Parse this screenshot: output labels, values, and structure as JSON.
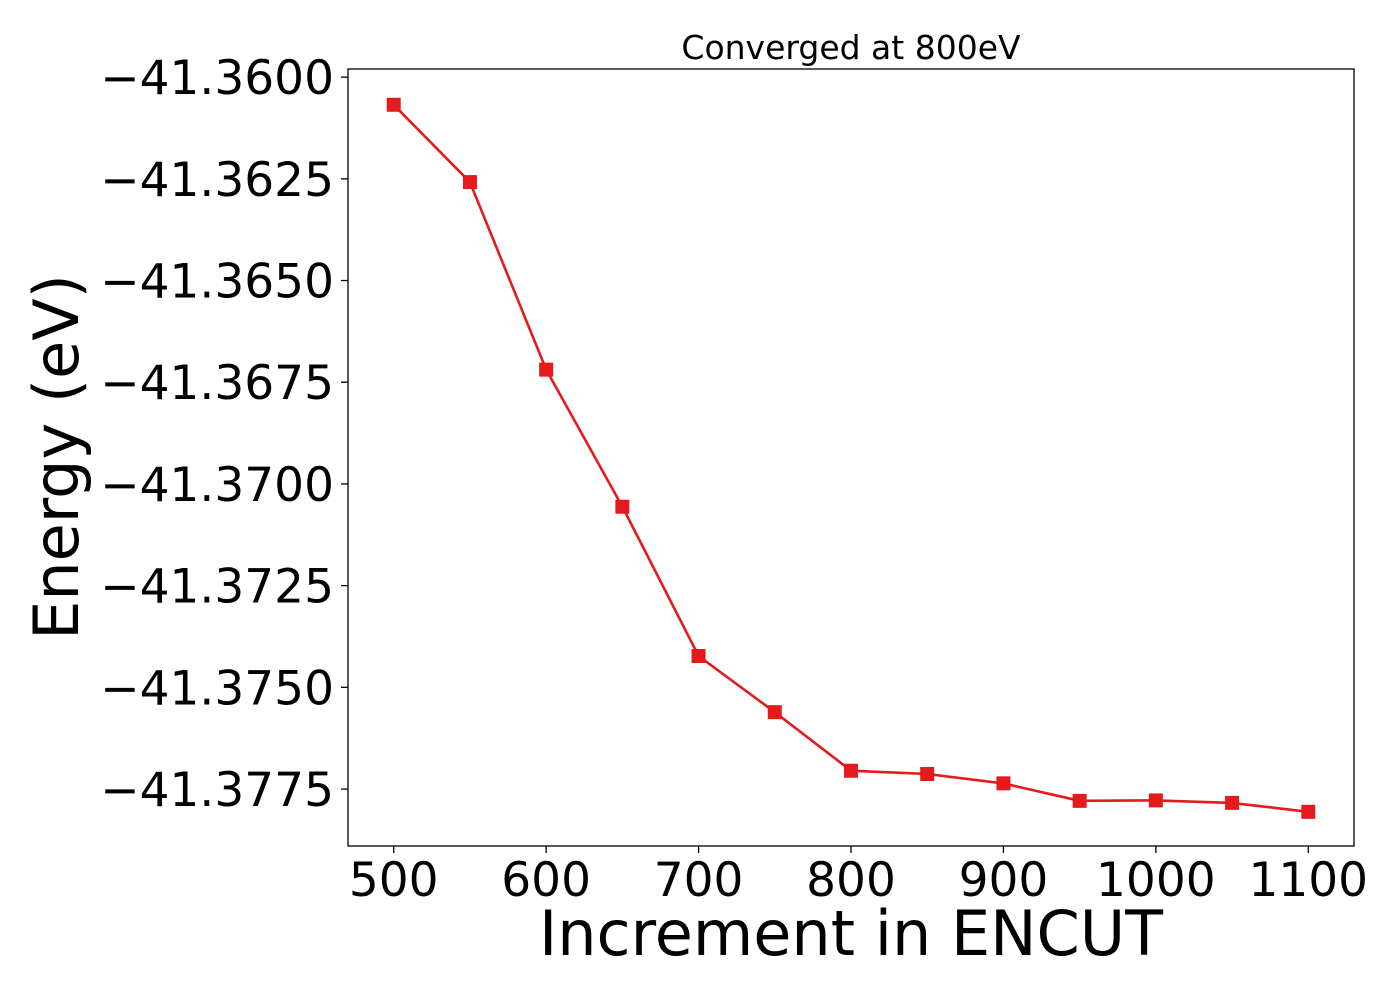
{
  "chart_data": {
    "type": "line",
    "title": "Converged at 800eV",
    "xlabel": "Increment in ENCUT",
    "ylabel": "Energy (eV)",
    "xlim": [
      470,
      1130
    ],
    "ylim": [
      -41.3789,
      -41.3598
    ],
    "x_ticks": [
      500,
      600,
      700,
      800,
      900,
      1000,
      1100
    ],
    "y_ticks": [
      -41.36,
      -41.3625,
      -41.365,
      -41.3675,
      -41.37,
      -41.3725,
      -41.375,
      -41.3775
    ],
    "y_tick_labels": [
      "−41.3600",
      "−41.3625",
      "−41.3650",
      "−41.3675",
      "−41.3700",
      "−41.3725",
      "−41.3750",
      "−41.3775"
    ],
    "grid": false,
    "series": [
      {
        "color": "#e41a1c",
        "marker": "square",
        "x": [
          500,
          550,
          600,
          650,
          700,
          750,
          800,
          850,
          900,
          950,
          1000,
          1050,
          1100
        ],
        "y": [
          -41.36068,
          -41.36258,
          -41.36719,
          -41.37056,
          -41.37423,
          -41.37561,
          -41.37705,
          -41.37713,
          -41.37736,
          -41.37779,
          -41.37778,
          -41.37784,
          -41.37806
        ]
      }
    ]
  }
}
